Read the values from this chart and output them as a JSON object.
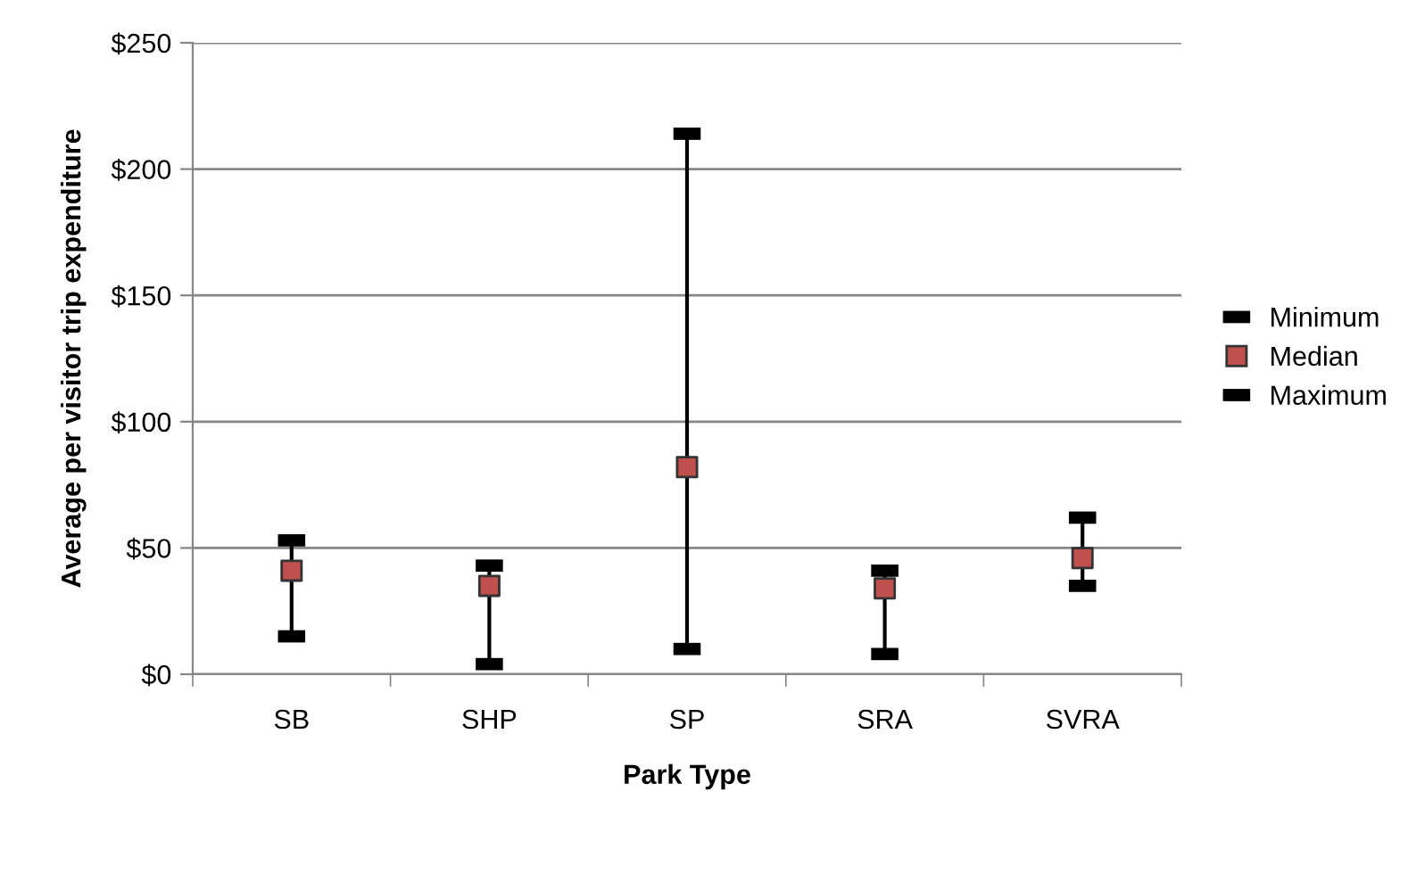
{
  "chart_data": {
    "type": "scatter",
    "xlabel": "Park Type",
    "ylabel": "Average per visitor trip expenditure",
    "categories": [
      "SB",
      "SHP",
      "SP",
      "SRA",
      "SVRA"
    ],
    "series": [
      {
        "name": "Minimum",
        "color": "#000000",
        "values": [
          15,
          4,
          10,
          8,
          35
        ]
      },
      {
        "name": "Median",
        "color": "#c0504d",
        "marker": "square",
        "values": [
          41,
          35,
          82,
          34,
          46
        ]
      },
      {
        "name": "Maximum",
        "color": "#000000",
        "values": [
          53,
          43,
          214,
          41,
          62
        ]
      }
    ],
    "ylim": [
      0,
      250
    ],
    "yticks": [
      {
        "value": 0,
        "label": "$0"
      },
      {
        "value": 50,
        "label": "$50"
      },
      {
        "value": 100,
        "label": "$100"
      },
      {
        "value": 150,
        "label": "$150"
      },
      {
        "value": 200,
        "label": "$200"
      },
      {
        "value": 250,
        "label": "$250"
      }
    ],
    "grid": "y",
    "legend": "right"
  }
}
